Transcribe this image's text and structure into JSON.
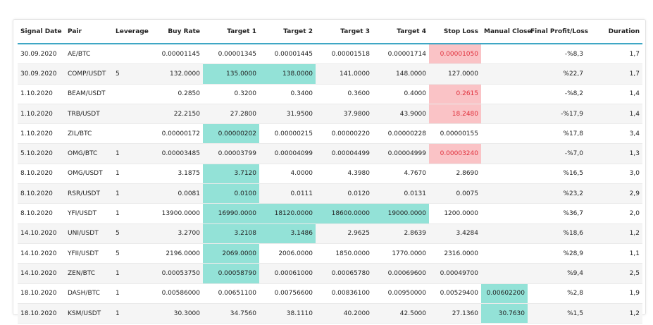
{
  "table": {
    "header": [
      "Signal Date",
      "Pair",
      "Leverage",
      "Buy Rate",
      "Target 1",
      "Target 2",
      "Target 3",
      "Target 4",
      "Stop Loss",
      "Manual Close",
      "Final Profit/Loss",
      "Duration"
    ],
    "rows": [
      [
        "30.09.2020",
        "AE/BTC",
        null,
        "0.00001145",
        "0.00001345",
        "0.00001445",
        "0.00001518",
        "0.00001714",
        "0.00001050",
        null,
        "-%8,3",
        "1,7"
      ],
      [
        "30.09.2020",
        "COMP/USDT",
        "5",
        "132.0000",
        "135.0000",
        "138.0000",
        "141.0000",
        "148.0000",
        "127.0000",
        null,
        "%22,7",
        "1,7"
      ],
      [
        "1.10.2020",
        "BEAM/USDT",
        null,
        "0.2850",
        "0.3200",
        "0.3400",
        "0.3600",
        "0.4000",
        "0.2615",
        null,
        "-%8,2",
        "1,4"
      ],
      [
        "1.10.2020",
        "TRB/USDT",
        null,
        "22.2150",
        "27.2800",
        "31.9500",
        "37.9800",
        "43.9000",
        "18.2480",
        null,
        "-%17,9",
        "1,4"
      ],
      [
        "1.10.2020",
        "ZIL/BTC",
        null,
        "0.00000172",
        "0.00000202",
        "0.00000215",
        "0.00000220",
        "0.00000228",
        "0.00000155",
        null,
        "%17,8",
        "3,4"
      ],
      [
        "5.10.2020",
        "OMG/BTC",
        "1",
        "0.00003485",
        "0.00003799",
        "0.00004099",
        "0.00004499",
        "0.00004999",
        "0.00003240",
        null,
        "-%7,0",
        "1,3"
      ],
      [
        "8.10.2020",
        "OMG/USDT",
        "1",
        "3.1875",
        "3.7120",
        "4.0000",
        "4.3980",
        "4.7670",
        "2.8690",
        null,
        "%16,5",
        "3,0"
      ],
      [
        "8.10.2020",
        "RSR/USDT",
        "1",
        "0.0081",
        "0.0100",
        "0.0111",
        "0.0120",
        "0.0131",
        "0.0075",
        null,
        "%23,2",
        "2,9"
      ],
      [
        "8.10.2020",
        "YFI/USDT",
        "1",
        "13900.0000",
        "16990.0000",
        "18120.0000",
        "18600.0000",
        "19000.0000",
        "1200.0000",
        null,
        "%36,7",
        "2,0"
      ],
      [
        "14.10.2020",
        "UNI/USDT",
        "5",
        "3.2700",
        "3.2108",
        "3.1486",
        "2.9625",
        "2.8639",
        "3.4284",
        null,
        "%18,6",
        "1,2"
      ],
      [
        "14.10.2020",
        "YFII/USDT",
        "5",
        "2196.0000",
        "2069.0000",
        "2006.0000",
        "1850.0000",
        "1770.0000",
        "2316.0000",
        null,
        "%28,9",
        "1,1"
      ],
      [
        "14.10.2020",
        "ZEN/BTC",
        "1",
        "0.00053750",
        "0.00058790",
        "0.00061000",
        "0.00065780",
        "0.00069600",
        "0.00049700",
        null,
        "%9,4",
        "2,5"
      ],
      [
        "18.10.2020",
        "DASH/BTC",
        "1",
        "0.00586000",
        "0.00651100",
        "0.00756600",
        "0.00836100",
        "0.00950000",
        "0.00529400",
        "0.00602200",
        "%2,8",
        "1,9"
      ],
      [
        "18.10.2020",
        "KSM/USDT",
        "1",
        "30.3000",
        "34.7560",
        "38.1110",
        "40.2000",
        "42.5000",
        "27.1360",
        "30.7630",
        "%1,5",
        "1,2"
      ]
    ]
  }
}
